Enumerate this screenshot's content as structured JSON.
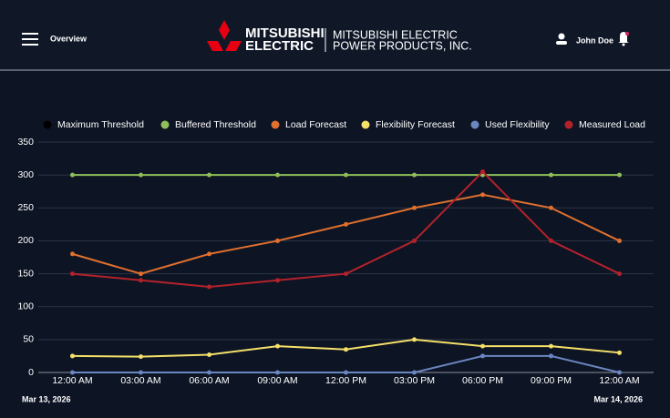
{
  "header": {
    "menu_label": "Overview",
    "logo_line1": "MITSUBISHI",
    "logo_line2": "ELECTRIC",
    "company_line1": "MITSUBISHI ELECTRIC",
    "company_line2": "POWER PRODUCTS, INC.",
    "user_name": "John Doe"
  },
  "chart_data": {
    "type": "line",
    "categories": [
      "12:00 AM",
      "03:00 AM",
      "06:00 AM",
      "09:00 AM",
      "12:00 PM",
      "03:00 PM",
      "06:00 PM",
      "09:00 PM",
      "12:00 AM"
    ],
    "series": [
      {
        "name": "Maximum Threshold",
        "color": "#000000",
        "values": [
          null,
          null,
          null,
          null,
          null,
          null,
          null,
          null,
          null
        ]
      },
      {
        "name": "Buffered Threshold",
        "color": "#8fbf5a",
        "values": [
          300,
          300,
          300,
          300,
          300,
          300,
          300,
          300,
          300
        ]
      },
      {
        "name": "Load Forecast",
        "color": "#e0702e",
        "values": [
          180,
          150,
          180,
          200,
          225,
          250,
          270,
          250,
          200
        ]
      },
      {
        "name": "Flexibility Forecast",
        "color": "#f5e06a",
        "values": [
          25,
          24,
          27,
          40,
          35,
          50,
          40,
          40,
          30
        ]
      },
      {
        "name": "Used Flexibility",
        "color": "#6b86c0",
        "values": [
          0,
          0,
          0,
          0,
          0,
          0,
          25,
          25,
          0
        ]
      },
      {
        "name": "Measured Load",
        "color": "#b3222b",
        "values": [
          150,
          140,
          130,
          140,
          150,
          200,
          305,
          200,
          150
        ]
      }
    ],
    "ylim": [
      0,
      350
    ],
    "yticks": [
      0,
      50,
      100,
      150,
      200,
      250,
      300,
      350
    ],
    "grid": true
  },
  "date_start": "Mar 13, 2026",
  "date_end": "Mar 14, 2026"
}
